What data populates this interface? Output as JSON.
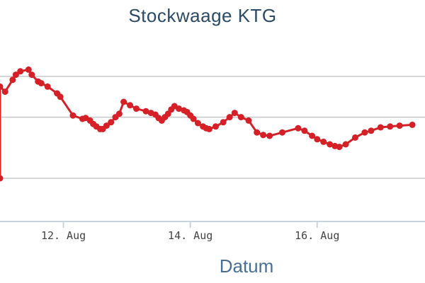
{
  "chart_data": {
    "type": "line",
    "title": "Stockwaage KTG",
    "xlabel": "Datum",
    "ylabel": "",
    "x_unit": "days (August)",
    "xlim": [
      11.0,
      17.7
    ],
    "ylim": [
      0,
      100
    ],
    "x_ticks": [
      {
        "value": 12,
        "label": "12. Aug"
      },
      {
        "value": 14,
        "label": "14. Aug"
      },
      {
        "value": 16,
        "label": "16. Aug"
      }
    ],
    "y_gridlines": [
      20,
      56,
      80
    ],
    "series": [
      {
        "name": "",
        "color": "#d62027",
        "points": [
          [
            11.0,
            20
          ],
          [
            11.0,
            74
          ],
          [
            11.08,
            71
          ],
          [
            11.2,
            78
          ],
          [
            11.25,
            81
          ],
          [
            11.32,
            83
          ],
          [
            11.45,
            84
          ],
          [
            11.5,
            81
          ],
          [
            11.6,
            77
          ],
          [
            11.65,
            76
          ],
          [
            11.75,
            74
          ],
          [
            11.9,
            70
          ],
          [
            11.95,
            68
          ],
          [
            12.15,
            57
          ],
          [
            12.3,
            55
          ],
          [
            12.35,
            55.5
          ],
          [
            12.42,
            54
          ],
          [
            12.47,
            52
          ],
          [
            12.52,
            50.5
          ],
          [
            12.58,
            49
          ],
          [
            12.62,
            49
          ],
          [
            12.68,
            51
          ],
          [
            12.75,
            53
          ],
          [
            12.82,
            56
          ],
          [
            12.88,
            58
          ],
          [
            12.95,
            65
          ],
          [
            13.05,
            63
          ],
          [
            13.15,
            61
          ],
          [
            13.3,
            59.5
          ],
          [
            13.38,
            58.5
          ],
          [
            13.45,
            57.5
          ],
          [
            13.5,
            55.5
          ],
          [
            13.55,
            54
          ],
          [
            13.6,
            56
          ],
          [
            13.65,
            58
          ],
          [
            13.7,
            60.5
          ],
          [
            13.75,
            62.5
          ],
          [
            13.82,
            61
          ],
          [
            13.9,
            60
          ],
          [
            13.95,
            59
          ],
          [
            14.0,
            57
          ],
          [
            14.05,
            55
          ],
          [
            14.12,
            52.5
          ],
          [
            14.2,
            50.5
          ],
          [
            14.25,
            49.5
          ],
          [
            14.3,
            49
          ],
          [
            14.4,
            50.5
          ],
          [
            14.52,
            53
          ],
          [
            14.62,
            56
          ],
          [
            14.7,
            58.5
          ],
          [
            14.8,
            56
          ],
          [
            14.92,
            54
          ],
          [
            15.05,
            47
          ],
          [
            15.15,
            45.5
          ],
          [
            15.25,
            45
          ],
          [
            15.45,
            47
          ],
          [
            15.7,
            49.5
          ],
          [
            15.8,
            48
          ],
          [
            15.92,
            45
          ],
          [
            16.0,
            43
          ],
          [
            16.1,
            41.5
          ],
          [
            16.2,
            40
          ],
          [
            16.28,
            39
          ],
          [
            16.35,
            38.5
          ],
          [
            16.45,
            40
          ],
          [
            16.6,
            44
          ],
          [
            16.75,
            47
          ],
          [
            16.85,
            48
          ],
          [
            17.0,
            50
          ],
          [
            17.15,
            50.5
          ],
          [
            17.3,
            51
          ],
          [
            17.5,
            51.5
          ]
        ]
      }
    ]
  }
}
